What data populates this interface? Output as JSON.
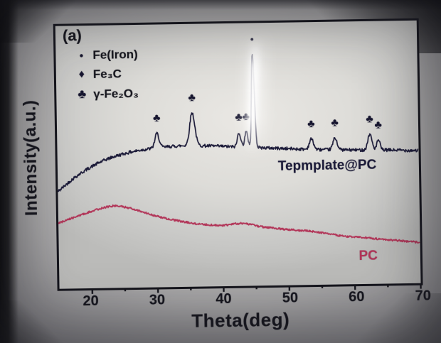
{
  "chart_data": {
    "type": "line",
    "panel_label": "(a)",
    "xlabel": "Theta(deg)",
    "ylabel": "Intensity(a.u.)",
    "xlim": [
      15,
      70
    ],
    "xticks": [
      20,
      30,
      40,
      50,
      60,
      70
    ],
    "x_minor_ticks": [
      25,
      35,
      45,
      55,
      65
    ],
    "ylim": [
      0,
      1
    ],
    "grid": false,
    "legend_position": "top-left-inside",
    "legend": [
      {
        "glyph": "●",
        "marker": "fe",
        "label": "Fe(Iron)"
      },
      {
        "glyph": "♦",
        "marker": "fe3c",
        "label": "Fe₃C"
      },
      {
        "glyph": "♣",
        "marker": "gfe2o3",
        "label": "γ-Fe₂O₃"
      }
    ],
    "marker_glyphs": {
      "fe": "●",
      "fe3c": "♦",
      "gfe2o3": "♣"
    },
    "series": [
      {
        "name": "Tepmplate@PC",
        "color": "#1b1a38",
        "line_width": 1.7,
        "noise": 0.006,
        "baseline": [
          [
            15,
            0.37
          ],
          [
            18,
            0.43
          ],
          [
            22,
            0.485
          ],
          [
            26,
            0.515
          ],
          [
            30,
            0.53
          ],
          [
            34,
            0.537
          ],
          [
            38,
            0.535
          ],
          [
            42,
            0.53
          ],
          [
            46,
            0.525
          ],
          [
            50,
            0.52
          ],
          [
            54,
            0.515
          ],
          [
            58,
            0.512
          ],
          [
            62,
            0.51
          ],
          [
            66,
            0.508
          ],
          [
            70,
            0.505
          ]
        ],
        "peaks": [
          {
            "x": 30.2,
            "height": 0.055,
            "width": 0.45,
            "marker": "gfe2o3"
          },
          {
            "x": 35.6,
            "height": 0.125,
            "width": 0.55,
            "marker": "gfe2o3"
          },
          {
            "x": 42.7,
            "height": 0.055,
            "width": 0.35,
            "marker": "gfe2o3"
          },
          {
            "x": 43.8,
            "height": 0.058,
            "width": 0.35,
            "marker": "gfe2o3"
          },
          {
            "x": 44.9,
            "height": 0.36,
            "width": 0.3,
            "marker": "fe"
          },
          {
            "x": 53.7,
            "height": 0.04,
            "width": 0.45,
            "marker": "gfe2o3"
          },
          {
            "x": 57.3,
            "height": 0.045,
            "width": 0.45,
            "marker": "gfe2o3"
          },
          {
            "x": 62.6,
            "height": 0.06,
            "width": 0.45,
            "marker": "gfe2o3"
          },
          {
            "x": 63.9,
            "height": 0.038,
            "width": 0.35,
            "marker": "gfe2o3"
          }
        ]
      },
      {
        "name": "PC",
        "color": "#b23558",
        "line_width": 1.9,
        "noise": 0.0035,
        "baseline": [
          [
            15,
            0.25
          ],
          [
            18,
            0.276
          ],
          [
            21,
            0.3
          ],
          [
            23.5,
            0.312
          ],
          [
            26,
            0.302
          ],
          [
            29,
            0.278
          ],
          [
            32,
            0.258
          ],
          [
            36,
            0.24
          ],
          [
            40,
            0.232
          ],
          [
            43,
            0.238
          ],
          [
            46,
            0.224
          ],
          [
            50,
            0.212
          ],
          [
            54,
            0.202
          ],
          [
            58,
            0.185
          ],
          [
            62,
            0.175
          ],
          [
            66,
            0.165
          ],
          [
            70,
            0.155
          ]
        ],
        "peaks": []
      }
    ]
  }
}
